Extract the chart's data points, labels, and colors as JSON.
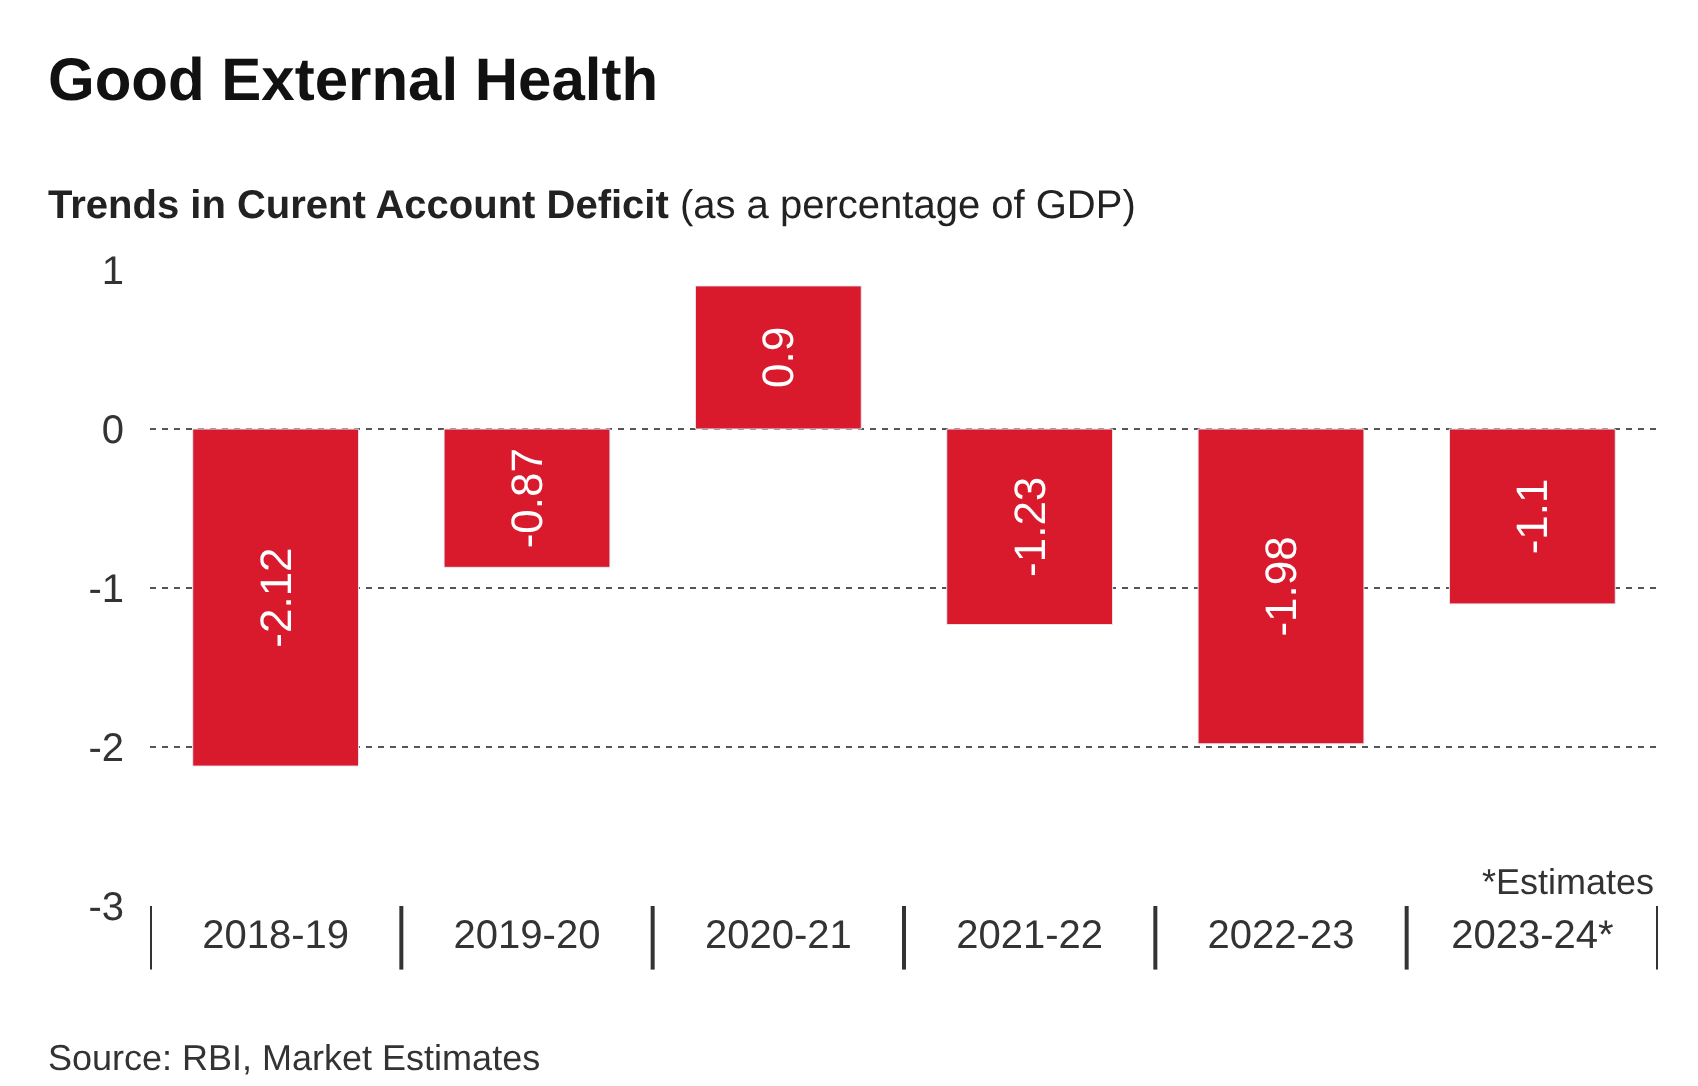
{
  "chart_data": {
    "type": "bar",
    "title": "Good External Health",
    "subtitle": "Trends in Curent Account Deficit (as a percentage of GDP)",
    "categories": [
      "2018-19",
      "2019-20",
      "2020-21",
      "2021-22",
      "2022-23",
      "2023-24*"
    ],
    "values": [
      -2.12,
      -0.87,
      0.9,
      -1.23,
      -1.98,
      -1.1
    ],
    "color": "#d9192c",
    "ylim": [
      -3,
      1
    ],
    "yticks": [
      -3,
      -2,
      -1,
      0,
      1
    ],
    "grid": "y",
    "data_labels": true,
    "annotations": [
      "*Estimates",
      "Source: RBI, Market Estimates"
    ]
  }
}
